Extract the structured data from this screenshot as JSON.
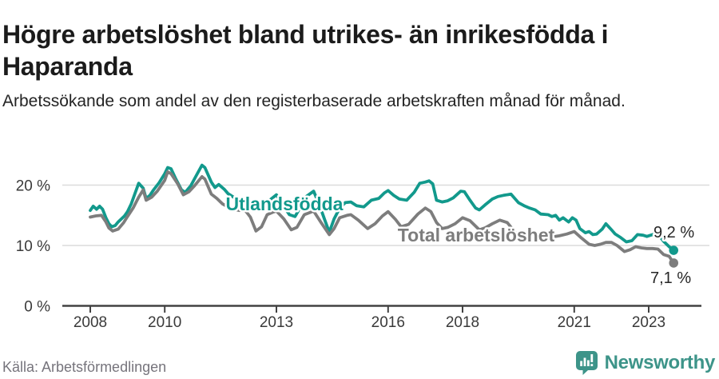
{
  "header": {
    "title": "Högre arbetslöshet bland utrikes- än inrikesfödda i Haparanda",
    "subtitle": "Arbetssökande som andel av den registerbaserade arbetskraften månad för månad."
  },
  "colors": {
    "accent_teal": "#12998c",
    "line_gray": "#7d7d7d",
    "logo_teal": "#3d9489",
    "gridline": "#dcdcdc",
    "axis": "#424242"
  },
  "footer": {
    "source": "Källa: Arbetsförmedlingen",
    "logo_text": "Newsworthy"
  },
  "chart_data": {
    "type": "line",
    "title": "Högre arbetslöshet bland utrikes- än inrikesfödda i Haparanda",
    "subtitle": "Arbetssökande som andel av den registerbaserade arbetskraften månad för månad.",
    "source": "Källa: Arbetsförmedlingen",
    "grid": "horizontal",
    "legend_position": "inline-labels",
    "xlim": [
      2007.25,
      2024.6
    ],
    "ylim": [
      0,
      25
    ],
    "x_axis": {
      "ticks": [
        {
          "value": 2008,
          "label": "2008"
        },
        {
          "value": 2010,
          "label": "2010"
        },
        {
          "value": 2013,
          "label": "2013"
        },
        {
          "value": 2016,
          "label": "2016"
        },
        {
          "value": 2018,
          "label": "2018"
        },
        {
          "value": 2021,
          "label": "2021"
        },
        {
          "value": 2023,
          "label": "2023"
        }
      ]
    },
    "y_axis": {
      "ticks": [
        {
          "value": 0,
          "label": "0 %"
        },
        {
          "value": 10,
          "label": "10 %"
        },
        {
          "value": 20,
          "label": "20 %"
        }
      ]
    },
    "series": [
      {
        "name": "Utlandsfödda",
        "color": "#12998c",
        "end_label": "9,2 %",
        "end_value": 9.2,
        "points": [
          [
            2008.0,
            15.8
          ],
          [
            2008.08,
            16.5
          ],
          [
            2008.17,
            16.0
          ],
          [
            2008.25,
            16.5
          ],
          [
            2008.33,
            16.0
          ],
          [
            2008.42,
            14.6
          ],
          [
            2008.5,
            13.6
          ],
          [
            2008.58,
            13.1
          ],
          [
            2008.67,
            13.3
          ],
          [
            2008.75,
            13.9
          ],
          [
            2008.92,
            14.9
          ],
          [
            2009.0,
            15.6
          ],
          [
            2009.1,
            16.9
          ],
          [
            2009.2,
            18.6
          ],
          [
            2009.3,
            20.3
          ],
          [
            2009.42,
            19.5
          ],
          [
            2009.5,
            17.8
          ],
          [
            2009.6,
            18.3
          ],
          [
            2009.7,
            19.2
          ],
          [
            2009.85,
            20.4
          ],
          [
            2010.0,
            21.9
          ],
          [
            2010.08,
            22.9
          ],
          [
            2010.17,
            22.7
          ],
          [
            2010.3,
            21.0
          ],
          [
            2010.45,
            19.2
          ],
          [
            2010.55,
            18.8
          ],
          [
            2010.7,
            19.9
          ],
          [
            2010.85,
            21.6
          ],
          [
            2011.0,
            23.3
          ],
          [
            2011.08,
            22.9
          ],
          [
            2011.25,
            20.5
          ],
          [
            2011.35,
            19.6
          ],
          [
            2011.45,
            20.1
          ],
          [
            2011.6,
            19.3
          ],
          [
            2011.7,
            18.6
          ],
          [
            2011.85,
            18.0
          ],
          [
            2012.0,
            17.6
          ],
          [
            2012.15,
            17.1
          ],
          [
            2012.3,
            16.5
          ],
          [
            2012.4,
            16.2
          ],
          [
            2012.55,
            16.4
          ],
          [
            2012.75,
            17.2
          ],
          [
            2012.9,
            17.9
          ],
          [
            2013.0,
            18.4
          ],
          [
            2013.15,
            16.9
          ],
          [
            2013.35,
            15.1
          ],
          [
            2013.5,
            14.8
          ],
          [
            2013.65,
            16.4
          ],
          [
            2013.8,
            18.1
          ],
          [
            2014.0,
            19.0
          ],
          [
            2014.15,
            16.8
          ],
          [
            2014.3,
            14.2
          ],
          [
            2014.42,
            12.2
          ],
          [
            2014.55,
            14.4
          ],
          [
            2014.7,
            16.2
          ],
          [
            2014.85,
            17.1
          ],
          [
            2015.0,
            17.2
          ],
          [
            2015.15,
            16.6
          ],
          [
            2015.35,
            16.4
          ],
          [
            2015.55,
            17.5
          ],
          [
            2015.75,
            17.8
          ],
          [
            2015.9,
            18.7
          ],
          [
            2016.0,
            19.1
          ],
          [
            2016.15,
            18.3
          ],
          [
            2016.3,
            17.7
          ],
          [
            2016.5,
            17.5
          ],
          [
            2016.7,
            18.8
          ],
          [
            2016.85,
            20.3
          ],
          [
            2017.0,
            20.5
          ],
          [
            2017.1,
            20.7
          ],
          [
            2017.2,
            20.2
          ],
          [
            2017.3,
            17.5
          ],
          [
            2017.45,
            17.2
          ],
          [
            2017.6,
            17.4
          ],
          [
            2017.75,
            17.9
          ],
          [
            2017.95,
            19.0
          ],
          [
            2018.05,
            18.9
          ],
          [
            2018.2,
            17.5
          ],
          [
            2018.35,
            16.2
          ],
          [
            2018.45,
            15.9
          ],
          [
            2018.6,
            16.7
          ],
          [
            2018.8,
            17.7
          ],
          [
            2018.95,
            18.1
          ],
          [
            2019.1,
            18.3
          ],
          [
            2019.3,
            18.5
          ],
          [
            2019.5,
            17.1
          ],
          [
            2019.65,
            16.6
          ],
          [
            2019.8,
            16.2
          ],
          [
            2019.95,
            15.9
          ],
          [
            2020.1,
            15.2
          ],
          [
            2020.3,
            15.1
          ],
          [
            2020.4,
            14.8
          ],
          [
            2020.5,
            15.0
          ],
          [
            2020.6,
            14.2
          ],
          [
            2020.7,
            14.6
          ],
          [
            2020.85,
            13.9
          ],
          [
            2020.95,
            14.6
          ],
          [
            2021.05,
            14.2
          ],
          [
            2021.15,
            12.8
          ],
          [
            2021.3,
            12.1
          ],
          [
            2021.4,
            12.3
          ],
          [
            2021.5,
            11.8
          ],
          [
            2021.6,
            11.9
          ],
          [
            2021.75,
            12.7
          ],
          [
            2021.85,
            13.6
          ],
          [
            2022.0,
            12.6
          ],
          [
            2022.1,
            11.9
          ],
          [
            2022.25,
            11.3
          ],
          [
            2022.4,
            10.6
          ],
          [
            2022.55,
            10.8
          ],
          [
            2022.7,
            11.8
          ],
          [
            2022.85,
            11.7
          ],
          [
            2022.95,
            11.5
          ],
          [
            2023.1,
            11.8
          ],
          [
            2023.25,
            11.9
          ],
          [
            2023.4,
            10.7
          ],
          [
            2023.55,
            9.8
          ],
          [
            2023.67,
            9.2
          ]
        ]
      },
      {
        "name": "Total arbetslöshet",
        "color": "#7d7d7d",
        "end_label": "7,1 %",
        "end_value": 7.1,
        "points": [
          [
            2008.0,
            14.7
          ],
          [
            2008.15,
            14.9
          ],
          [
            2008.3,
            15.0
          ],
          [
            2008.42,
            13.9
          ],
          [
            2008.5,
            12.9
          ],
          [
            2008.6,
            12.4
          ],
          [
            2008.75,
            12.7
          ],
          [
            2008.9,
            13.8
          ],
          [
            2009.0,
            14.8
          ],
          [
            2009.15,
            16.2
          ],
          [
            2009.3,
            18.0
          ],
          [
            2009.42,
            19.2
          ],
          [
            2009.5,
            17.5
          ],
          [
            2009.65,
            18.0
          ],
          [
            2009.8,
            19.0
          ],
          [
            2010.0,
            20.8
          ],
          [
            2010.08,
            22.2
          ],
          [
            2010.17,
            21.9
          ],
          [
            2010.35,
            20.2
          ],
          [
            2010.5,
            18.4
          ],
          [
            2010.65,
            18.9
          ],
          [
            2010.8,
            19.9
          ],
          [
            2011.0,
            21.4
          ],
          [
            2011.08,
            21.0
          ],
          [
            2011.25,
            18.5
          ],
          [
            2011.4,
            17.8
          ],
          [
            2011.55,
            16.9
          ],
          [
            2011.7,
            16.4
          ],
          [
            2011.85,
            16.0
          ],
          [
            2012.0,
            15.8
          ],
          [
            2012.15,
            15.9
          ],
          [
            2012.3,
            14.7
          ],
          [
            2012.45,
            12.4
          ],
          [
            2012.6,
            13.1
          ],
          [
            2012.75,
            15.1
          ],
          [
            2012.9,
            15.5
          ],
          [
            2013.0,
            15.7
          ],
          [
            2013.2,
            14.4
          ],
          [
            2013.4,
            12.6
          ],
          [
            2013.55,
            13.0
          ],
          [
            2013.75,
            15.1
          ],
          [
            2014.0,
            15.7
          ],
          [
            2014.2,
            13.8
          ],
          [
            2014.42,
            11.8
          ],
          [
            2014.55,
            12.8
          ],
          [
            2014.7,
            14.6
          ],
          [
            2014.9,
            15.0
          ],
          [
            2015.0,
            15.1
          ],
          [
            2015.2,
            14.2
          ],
          [
            2015.45,
            12.8
          ],
          [
            2015.65,
            13.6
          ],
          [
            2015.85,
            14.9
          ],
          [
            2016.0,
            15.6
          ],
          [
            2016.2,
            14.3
          ],
          [
            2016.35,
            13.1
          ],
          [
            2016.55,
            13.5
          ],
          [
            2016.8,
            15.2
          ],
          [
            2017.0,
            16.2
          ],
          [
            2017.15,
            15.6
          ],
          [
            2017.3,
            13.8
          ],
          [
            2017.45,
            12.8
          ],
          [
            2017.6,
            13.0
          ],
          [
            2017.8,
            13.6
          ],
          [
            2018.0,
            14.6
          ],
          [
            2018.2,
            14.1
          ],
          [
            2018.45,
            12.6
          ],
          [
            2018.6,
            12.9
          ],
          [
            2018.8,
            13.6
          ],
          [
            2019.0,
            14.2
          ],
          [
            2019.2,
            13.8
          ],
          [
            2019.45,
            11.9
          ],
          [
            2019.6,
            11.5
          ],
          [
            2019.8,
            11.8
          ],
          [
            2020.0,
            12.0
          ],
          [
            2020.2,
            11.3
          ],
          [
            2020.4,
            11.4
          ],
          [
            2020.6,
            11.6
          ],
          [
            2020.8,
            11.9
          ],
          [
            2021.0,
            12.3
          ],
          [
            2021.2,
            11.2
          ],
          [
            2021.4,
            10.2
          ],
          [
            2021.55,
            10.0
          ],
          [
            2021.7,
            10.2
          ],
          [
            2021.85,
            10.5
          ],
          [
            2022.0,
            10.5
          ],
          [
            2022.15,
            10.0
          ],
          [
            2022.35,
            9.0
          ],
          [
            2022.5,
            9.3
          ],
          [
            2022.65,
            9.8
          ],
          [
            2022.8,
            9.6
          ],
          [
            2022.95,
            9.5
          ],
          [
            2023.1,
            9.5
          ],
          [
            2023.25,
            9.4
          ],
          [
            2023.4,
            8.5
          ],
          [
            2023.55,
            8.2
          ],
          [
            2023.67,
            7.1
          ]
        ]
      }
    ]
  }
}
